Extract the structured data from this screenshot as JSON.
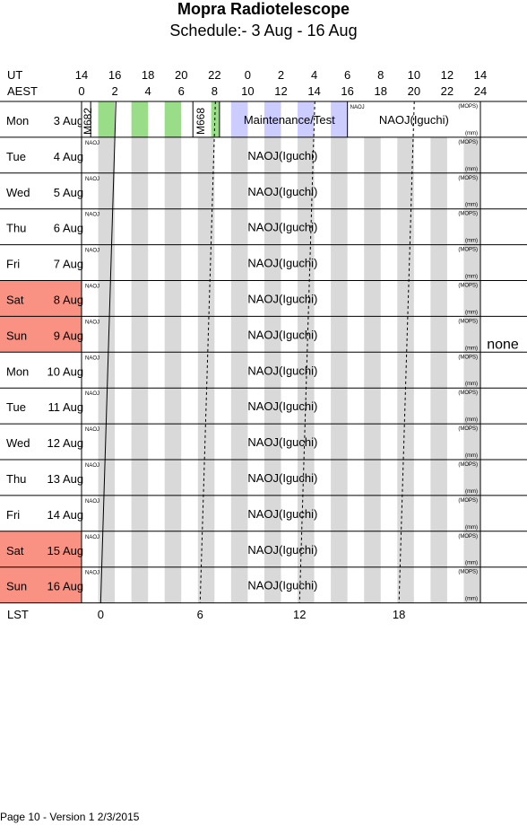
{
  "header": {
    "title": "Mopra Radiotelescope",
    "subtitle": "Schedule:- 3  Aug - 16 Aug"
  },
  "axis": {
    "ut_label": "UT",
    "aest_label": "AEST",
    "lst_label": "LST",
    "ut_ticks": [
      "14",
      "16",
      "18",
      "20",
      "22",
      "0",
      "2",
      "4",
      "6",
      "8",
      "10",
      "12",
      "14"
    ],
    "aest_ticks": [
      "0",
      "2",
      "4",
      "6",
      "8",
      "10",
      "12",
      "14",
      "16",
      "18",
      "20",
      "22",
      "24"
    ],
    "lst_ticks": [
      "0",
      "6",
      "12",
      "18"
    ]
  },
  "days": [
    {
      "dow": "Mon",
      "day": "3",
      "mon": "Aug",
      "weekend": false
    },
    {
      "dow": "Tue",
      "day": "4",
      "mon": "Aug",
      "weekend": false
    },
    {
      "dow": "Wed",
      "day": "5",
      "mon": "Aug",
      "weekend": false
    },
    {
      "dow": "Thu",
      "day": "6",
      "mon": "Aug",
      "weekend": false
    },
    {
      "dow": "Fri",
      "day": "7",
      "mon": "Aug",
      "weekend": false
    },
    {
      "dow": "Sat",
      "day": "8",
      "mon": "Aug",
      "weekend": true
    },
    {
      "dow": "Sun",
      "day": "9",
      "mon": "Aug",
      "weekend": true
    },
    {
      "dow": "Mon",
      "day": "10",
      "mon": "Aug",
      "weekend": false
    },
    {
      "dow": "Tue",
      "day": "11",
      "mon": "Aug",
      "weekend": false
    },
    {
      "dow": "Wed",
      "day": "12",
      "mon": "Aug",
      "weekend": false
    },
    {
      "dow": "Thu",
      "day": "13",
      "mon": "Aug",
      "weekend": false
    },
    {
      "dow": "Fri",
      "day": "14",
      "mon": "Aug",
      "weekend": false
    },
    {
      "dow": "Sat",
      "day": "15",
      "mon": "Aug",
      "weekend": true
    },
    {
      "dow": "Sun",
      "day": "16",
      "mon": "Aug",
      "weekend": true
    }
  ],
  "first_row_blocks": [
    {
      "code": "M682",
      "start_aest": 0,
      "end_aest": 0.5,
      "fill": "none",
      "vertical": true
    },
    {
      "code": "",
      "start_aest": 1,
      "end_aest": 2,
      "fill": "#99dd88"
    },
    {
      "code": "",
      "start_aest": 3,
      "end_aest": 4,
      "fill": "#99dd88"
    },
    {
      "code": "",
      "start_aest": 5,
      "end_aest": 6,
      "fill": "#99dd88"
    },
    {
      "code": "M668",
      "start_aest": 6.8,
      "end_aest": 7.8,
      "fill": "none",
      "vertical": true
    },
    {
      "code": "",
      "start_aest": 7.8,
      "end_aest": 8.3,
      "fill": "#99dd88"
    },
    {
      "code": "Maintenance/Test",
      "start_aest": 9,
      "end_aest": 16,
      "fill": "none"
    },
    {
      "code": "NAOJ(Iguchi)",
      "start_aest": 16,
      "end_aest": 24,
      "fill": "none"
    }
  ],
  "first_row_lilac": [
    {
      "start_aest": 9,
      "end_aest": 10
    },
    {
      "start_aest": 11,
      "end_aest": 12
    },
    {
      "start_aest": 13,
      "end_aest": 14
    },
    {
      "start_aest": 15,
      "end_aest": 16
    }
  ],
  "row_project": "NAOJ(Iguchi)",
  "small_tag": "NAOJ",
  "corner_top": "(MOPS)",
  "corner_bottom": "(mm)",
  "side_note": "none",
  "footer": "Page 10 - Version 1  2/3/2015",
  "colors": {
    "weekend": "#f99282",
    "stripe": "#d9d9d9",
    "green": "#99dd88",
    "lilac": "#ccccff"
  }
}
